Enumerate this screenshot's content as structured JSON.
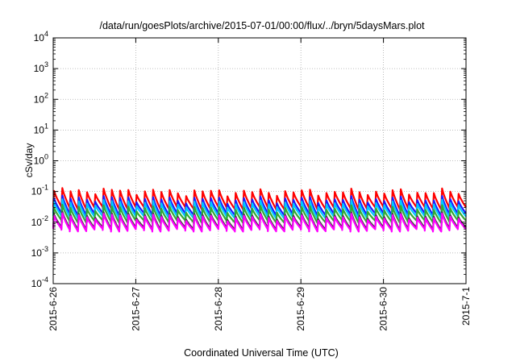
{
  "chart_data": {
    "type": "line",
    "title": "/data/run/goesPlots/archive/2015-07-01/00:00/flux/../bryn/5daysMars.plot",
    "xlabel": "Coordinated Universal Time (UTC)",
    "ylabel": "cSv/day",
    "yscale": "log",
    "ylim": [
      0.0001,
      10000
    ],
    "y_ticks": [
      {
        "value": 0.0001,
        "base": "10",
        "exp": "-4"
      },
      {
        "value": 0.001,
        "base": "10",
        "exp": "-3"
      },
      {
        "value": 0.01,
        "base": "10",
        "exp": "-2"
      },
      {
        "value": 0.1,
        "base": "10",
        "exp": "-1"
      },
      {
        "value": 1,
        "base": "10",
        "exp": "0"
      },
      {
        "value": 10,
        "base": "10",
        "exp": "1"
      },
      {
        "value": 100,
        "base": "10",
        "exp": "2"
      },
      {
        "value": 1000,
        "base": "10",
        "exp": "3"
      },
      {
        "value": 10000,
        "base": "10",
        "exp": "4"
      }
    ],
    "xlim": [
      "2015-06-26T00:00",
      "2015-07-01T00:00"
    ],
    "x_ticks": [
      {
        "value": "2015-06-26T00:00",
        "label": "2015-6-26"
      },
      {
        "value": "2015-06-27T00:00",
        "label": "2015-6-27"
      },
      {
        "value": "2015-06-28T00:00",
        "label": "2015-6-28"
      },
      {
        "value": "2015-06-29T00:00",
        "label": "2015-6-29"
      },
      {
        "value": "2015-06-30T00:00",
        "label": "2015-6-30"
      },
      {
        "value": "2015-07-01T00:00",
        "label": "2015-7-1"
      }
    ],
    "grid": true,
    "legend": "none",
    "period_hours": 2.4,
    "series": [
      {
        "color": "#ff0000",
        "peak": 0.105,
        "trough": 0.03
      },
      {
        "color": "#1a1aff",
        "peak": 0.06,
        "trough": 0.019
      },
      {
        "color": "#00c8ff",
        "peak": 0.045,
        "trough": 0.015
      },
      {
        "color": "#33aa33",
        "peak": 0.03,
        "trough": 0.011
      },
      {
        "color": "#444444",
        "peak": 0.018,
        "trough": 0.0065
      },
      {
        "color": "#ff00ff",
        "peak": 0.016,
        "trough": 0.0058
      }
    ]
  }
}
